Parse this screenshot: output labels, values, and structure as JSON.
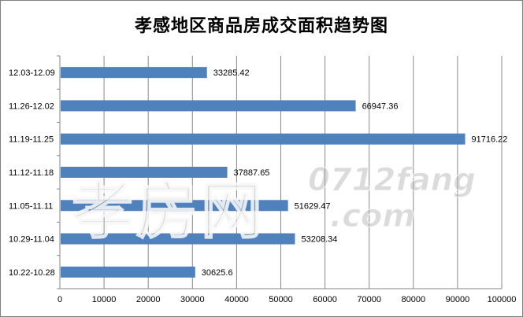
{
  "chart_data": {
    "type": "bar",
    "orientation": "horizontal",
    "title": "孝感地区商品房成交面积趋势图",
    "categories": [
      "12.03-12.09",
      "11.26-12.02",
      "11.19-11.25",
      "11.12-11.18",
      "11.05-11.11",
      "10.29-11.04",
      "10.22-10.28"
    ],
    "values": [
      33285.42,
      66947.36,
      91716.22,
      37887.65,
      51629.47,
      53208.34,
      30625.6
    ],
    "value_labels": [
      "33285.42",
      "66947.36",
      "91716.22",
      "37887.65",
      "51629.47",
      "53208.34",
      "30625.6"
    ],
    "xlim": [
      0,
      100000
    ],
    "x_ticks": [
      "0",
      "10000",
      "20000",
      "30000",
      "40000",
      "50000",
      "60000",
      "70000",
      "80000",
      "90000",
      "100000"
    ],
    "grid": true,
    "bar_color": "#4f81bd",
    "grid_color": "#888888"
  },
  "watermark": {
    "cn": "孝房网",
    "en_line1": "0712fang",
    "en_line2": ".com"
  }
}
